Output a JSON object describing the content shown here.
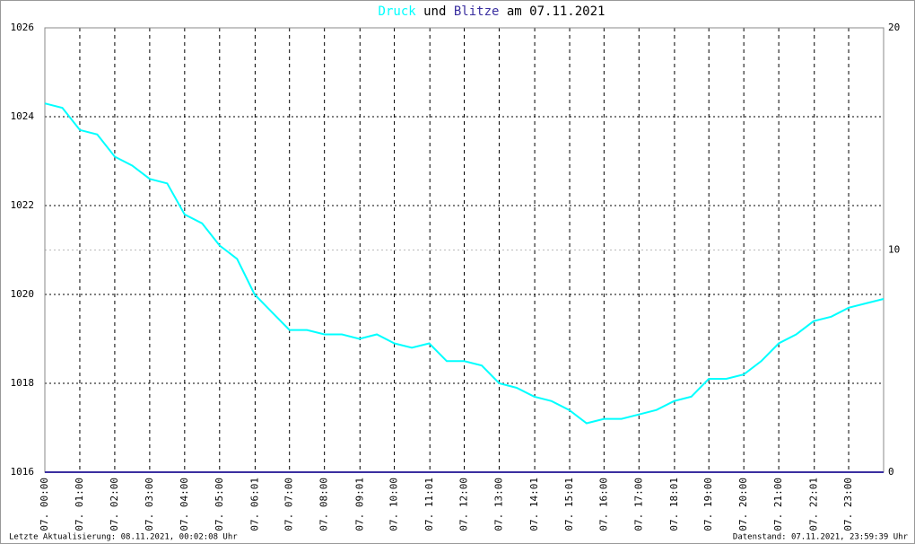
{
  "chart_data": {
    "type": "line",
    "title_connector": "und",
    "title_date": "am 07.11.2021",
    "x": [
      0,
      0.5,
      1,
      1.5,
      2,
      2.5,
      3,
      3.5,
      4,
      4.5,
      5,
      5.5,
      6,
      6.5,
      7,
      7.5,
      8,
      8.5,
      9,
      9.5,
      10,
      10.5,
      11,
      11.5,
      12,
      12.5,
      13,
      13.5,
      14,
      14.5,
      15,
      15.5,
      16,
      16.5,
      17,
      17.5,
      18,
      18.5,
      19,
      19.5,
      20,
      20.5,
      21,
      21.5,
      22,
      22.5,
      23,
      23.5,
      24
    ],
    "xlim": [
      0,
      24
    ],
    "xticks": [
      {
        "value": 0,
        "label": "07. 00:00"
      },
      {
        "value": 1,
        "label": "07. 01:00"
      },
      {
        "value": 2,
        "label": "07. 02:00"
      },
      {
        "value": 3,
        "label": "07. 03:00"
      },
      {
        "value": 4,
        "label": "07. 04:00"
      },
      {
        "value": 5,
        "label": "07. 05:00"
      },
      {
        "value": 6.017,
        "label": "07. 06:01"
      },
      {
        "value": 7,
        "label": "07. 07:00"
      },
      {
        "value": 8,
        "label": "07. 08:00"
      },
      {
        "value": 9.017,
        "label": "07. 09:01"
      },
      {
        "value": 10,
        "label": "07. 10:00"
      },
      {
        "value": 11.017,
        "label": "07. 11:01"
      },
      {
        "value": 12,
        "label": "07. 12:00"
      },
      {
        "value": 13,
        "label": "07. 13:00"
      },
      {
        "value": 14.017,
        "label": "07. 14:01"
      },
      {
        "value": 15.017,
        "label": "07. 15:01"
      },
      {
        "value": 16,
        "label": "07. 16:00"
      },
      {
        "value": 17,
        "label": "07. 17:00"
      },
      {
        "value": 18.017,
        "label": "07. 18:01"
      },
      {
        "value": 19,
        "label": "07. 19:00"
      },
      {
        "value": 20,
        "label": "07. 20:00"
      },
      {
        "value": 21,
        "label": "07. 21:00"
      },
      {
        "value": 22.017,
        "label": "07. 22:01"
      },
      {
        "value": 23,
        "label": "07. 23:00"
      }
    ],
    "ylim": [
      1016,
      1026
    ],
    "yticks": [
      1016,
      1018,
      1020,
      1022,
      1024,
      1026
    ],
    "y2lim": [
      0,
      20
    ],
    "y2ticks": [
      0,
      10,
      20
    ],
    "grid": true,
    "series": [
      {
        "name": "Druck",
        "color": "#00ffff",
        "values": [
          1024.3,
          1024.2,
          1023.7,
          1023.6,
          1023.1,
          1022.9,
          1022.6,
          1022.5,
          1021.8,
          1021.6,
          1021.1,
          1020.8,
          1020.0,
          1019.6,
          1019.2,
          1019.2,
          1019.1,
          1019.1,
          1019.0,
          1019.1,
          1018.9,
          1018.8,
          1018.9,
          1018.5,
          1018.5,
          1018.4,
          1018.0,
          1017.9,
          1017.7,
          1017.6,
          1017.4,
          1017.1,
          1017.2,
          1017.2,
          1017.3,
          1017.4,
          1017.6,
          1017.7,
          1018.1,
          1018.1,
          1018.2,
          1018.5,
          1018.9,
          1019.1,
          1019.4,
          1019.5,
          1019.7,
          1019.8,
          1019.9
        ]
      },
      {
        "name": "Blitze",
        "color": "#3a2fa0",
        "axis": "y2",
        "values": [
          0,
          0,
          0,
          0,
          0,
          0,
          0,
          0,
          0,
          0,
          0,
          0,
          0,
          0,
          0,
          0,
          0,
          0,
          0,
          0,
          0,
          0,
          0,
          0,
          0,
          0,
          0,
          0,
          0,
          0,
          0,
          0,
          0,
          0,
          0,
          0,
          0,
          0,
          0,
          0,
          0,
          0,
          0,
          0,
          0,
          0,
          0,
          0,
          0
        ]
      }
    ],
    "footer_left": "Letzte Aktualisierung: 08.11.2021, 00:02:08 Uhr",
    "footer_right": "Datenstand: 07.11.2021, 23:59:39 Uhr"
  }
}
